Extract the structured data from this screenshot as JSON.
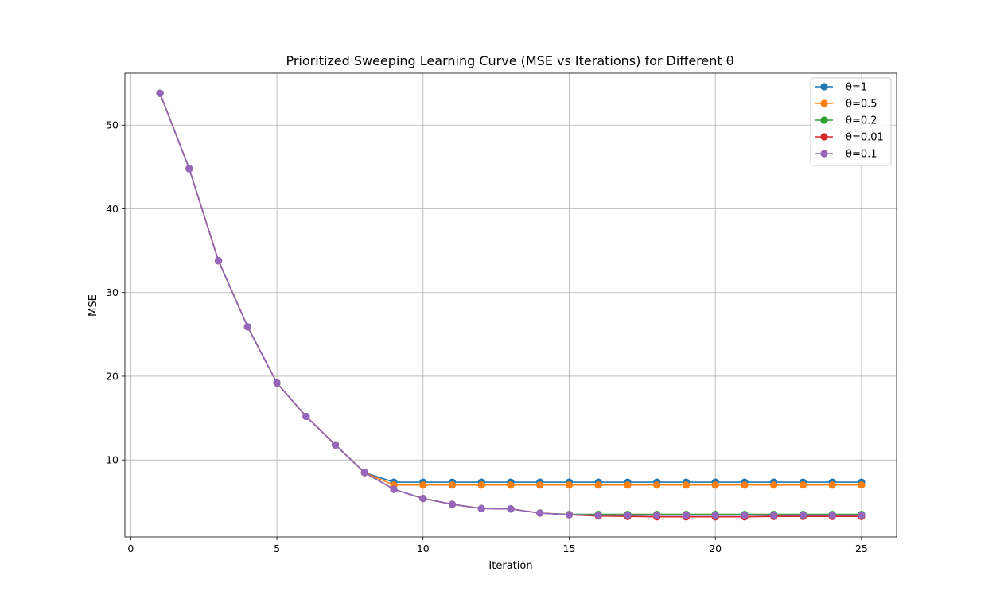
{
  "chart_data": {
    "type": "line",
    "title": "Prioritized Sweeping Learning Curve (MSE vs Iterations) for Different θ",
    "xlabel": "Iteration",
    "ylabel": "MSE",
    "xlim": [
      -0.2,
      26.2
    ],
    "ylim": [
      0.8,
      56.2
    ],
    "xticks": [
      0,
      5,
      10,
      15,
      20,
      25
    ],
    "yticks": [
      10,
      20,
      30,
      40,
      50
    ],
    "grid": true,
    "legend_position": "top-right",
    "x": [
      1,
      2,
      3,
      4,
      5,
      6,
      7,
      8,
      9,
      10,
      11,
      12,
      13,
      14,
      15,
      16,
      17,
      18,
      19,
      20,
      21,
      22,
      23,
      24,
      25
    ],
    "series": [
      {
        "name": "θ=1",
        "color": "#1f77b4",
        "values": [
          53.8,
          44.8,
          33.8,
          25.9,
          19.2,
          15.2,
          11.8,
          8.5,
          7.35,
          7.35,
          7.35,
          7.35,
          7.35,
          7.35,
          7.35,
          7.35,
          7.35,
          7.35,
          7.35,
          7.35,
          7.35,
          7.35,
          7.35,
          7.35,
          7.35
        ]
      },
      {
        "name": "θ=0.5",
        "color": "#ff7f0e",
        "values": [
          53.8,
          44.8,
          33.8,
          25.9,
          19.2,
          15.2,
          11.8,
          8.5,
          7.0,
          7.0,
          7.0,
          7.0,
          7.0,
          7.0,
          7.0,
          7.0,
          7.0,
          7.0,
          7.0,
          7.0,
          7.0,
          7.0,
          7.0,
          7.0,
          7.0
        ]
      },
      {
        "name": "θ=0.2",
        "color": "#2ca02c",
        "values": [
          53.8,
          44.8,
          33.8,
          25.9,
          19.2,
          15.2,
          11.8,
          8.5,
          6.5,
          5.4,
          4.7,
          4.2,
          4.15,
          3.65,
          3.5,
          3.5,
          3.5,
          3.5,
          3.5,
          3.5,
          3.5,
          3.5,
          3.5,
          3.5,
          3.5
        ]
      },
      {
        "name": "θ=0.01",
        "color": "#d62728",
        "values": [
          53.8,
          44.8,
          33.8,
          25.9,
          19.2,
          15.2,
          11.8,
          8.5,
          6.5,
          5.4,
          4.7,
          4.2,
          4.15,
          3.65,
          3.45,
          3.3,
          3.25,
          3.2,
          3.2,
          3.2,
          3.2,
          3.25,
          3.25,
          3.25,
          3.25
        ]
      },
      {
        "name": "θ=0.1",
        "color": "#9467bd",
        "values": [
          53.8,
          44.8,
          33.8,
          25.9,
          19.2,
          15.2,
          11.8,
          8.5,
          6.5,
          5.4,
          4.7,
          4.2,
          4.15,
          3.65,
          3.45,
          3.4,
          3.4,
          3.4,
          3.4,
          3.4,
          3.4,
          3.4,
          3.4,
          3.4,
          3.4
        ]
      }
    ]
  }
}
